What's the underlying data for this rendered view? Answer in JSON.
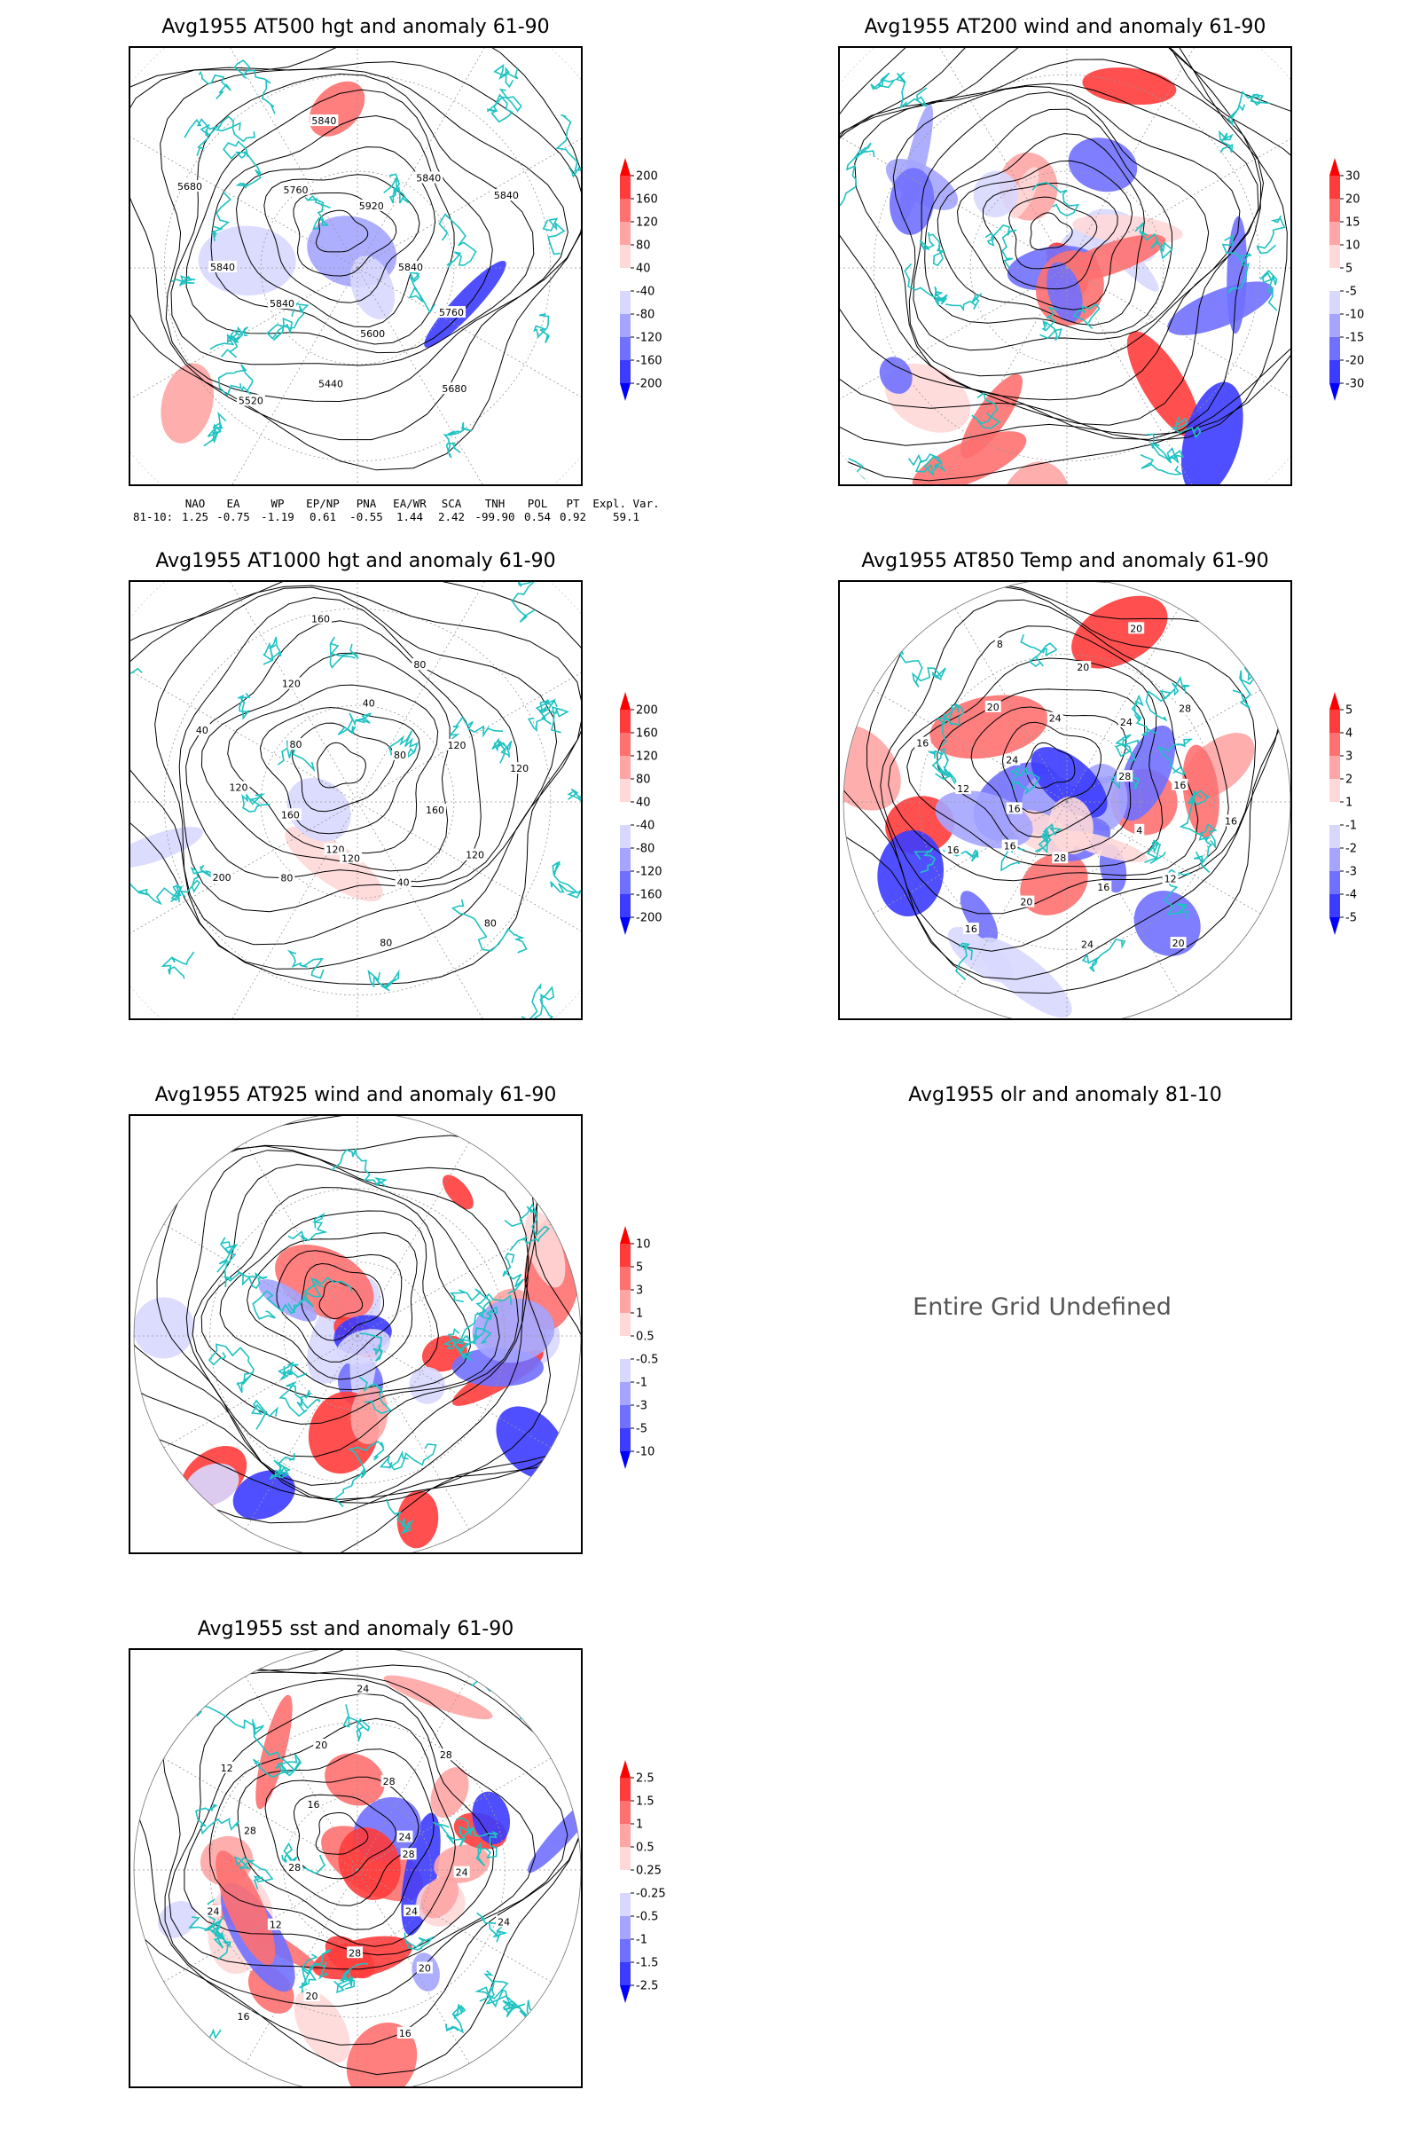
{
  "panels": [
    {
      "title": "Avg1955 AT500 hgt and anomaly 61-90",
      "labels": [
        "5840",
        "5760",
        "5680",
        "5600",
        "5440",
        "5520",
        "5840",
        "5840",
        "5680",
        "5760",
        "5840",
        "5920",
        "5840",
        "5840"
      ]
    },
    {
      "title": "Avg1955 AT200 wind and anomaly 61-90"
    },
    {
      "title": "Avg1955 AT1000 hgt and anomaly 61-90",
      "labels": [
        "120",
        "80",
        "200",
        "160",
        "120",
        "40",
        "80",
        "120",
        "160",
        "40",
        "80",
        "80",
        "120",
        "120",
        "160",
        "120",
        "80",
        "40",
        "80",
        "120"
      ]
    },
    {
      "title": "Avg1955 AT850 Temp and anomaly 61-90",
      "labels": [
        "16",
        "12",
        "16",
        "24",
        "20",
        "8",
        "24",
        "20",
        "20",
        "24",
        "28",
        "28",
        "16",
        "16",
        "4",
        "12",
        "20",
        "16",
        "24",
        "28",
        "20",
        "16",
        "16",
        "16"
      ]
    },
    {
      "title": "Avg1955 AT925 wind and anomaly 61-90"
    },
    {
      "title": "Avg1955 olr and anomaly 81-10",
      "message": "Entire Grid Undefined"
    },
    {
      "title": "Avg1955 sst and anomaly 61-90",
      "labels": [
        "28",
        "24",
        "24",
        "24",
        "20",
        "16",
        "28",
        "20",
        "16",
        "12",
        "24",
        "28",
        "28",
        "12",
        "16",
        "20",
        "24",
        "28",
        "28",
        "24"
      ]
    }
  ],
  "colorbars": {
    "hgt": [
      "200",
      "160",
      "120",
      "80",
      "40",
      "-40",
      "-80",
      "-120",
      "-160",
      "-200"
    ],
    "wind200": [
      "30",
      "20",
      "15",
      "10",
      "5",
      "-5",
      "-10",
      "-15",
      "-20",
      "-30"
    ],
    "temp": [
      "5",
      "4",
      "3",
      "2",
      "1",
      "-1",
      "-2",
      "-3",
      "-4",
      "-5"
    ],
    "wind925": [
      "10",
      "5",
      "3",
      "1",
      "0.5",
      "-0.5",
      "-1",
      "-3",
      "-5",
      "-10"
    ],
    "sst": [
      "2.5",
      "1.5",
      "1",
      "0.5",
      "0.25",
      "-0.25",
      "-0.5",
      "-1",
      "-1.5",
      "-2.5"
    ]
  },
  "colors": {
    "red": [
      "#ff0000",
      "#ff3c3c",
      "#ff7070",
      "#ffa5a5",
      "#ffd8d8"
    ],
    "white": "#ffffff",
    "blue": [
      "#d8d8ff",
      "#a5a5ff",
      "#7070ff",
      "#3c3cff",
      "#0000ff"
    ],
    "coast": "#1fc2c2"
  },
  "indices": {
    "headers": [
      "NAO",
      "EA",
      "WP",
      "EP/NP",
      "PNA",
      "EA/WR",
      "SCA",
      "TNH",
      "POL",
      "PT",
      "Expl. Var."
    ],
    "row_label": "81-10:",
    "values": [
      "1.25",
      "-0.75",
      "-1.19",
      "0.61",
      "-0.55",
      "1.44",
      "2.42",
      "-99.90",
      "0.54",
      "0.92",
      "59.1"
    ]
  }
}
